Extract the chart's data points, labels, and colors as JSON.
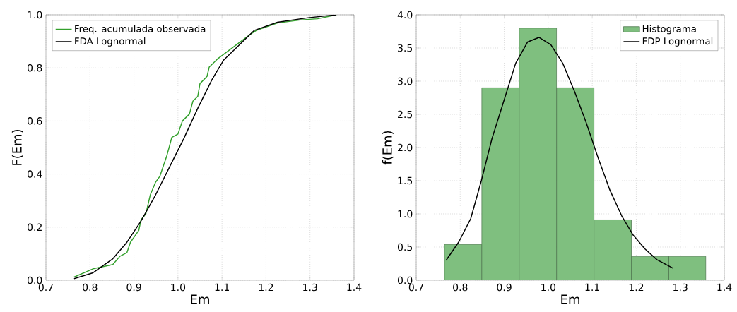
{
  "chart_data": [
    {
      "type": "line",
      "xlabel": "Em",
      "ylabel": "F(Em)",
      "xlim": [
        0.7,
        1.4
      ],
      "ylim": [
        0,
        1.0
      ],
      "xticks": [
        {
          "value": 0.7,
          "label": "0.7"
        },
        {
          "value": 0.8,
          "label": "0.8"
        },
        {
          "value": 0.9,
          "label": "0.9"
        },
        {
          "value": 1.0,
          "label": "1.0"
        },
        {
          "value": 1.1,
          "label": "1.1"
        },
        {
          "value": 1.2,
          "label": "1.2"
        },
        {
          "value": 1.3,
          "label": "1.3"
        },
        {
          "value": 1.4,
          "label": "1.4"
        }
      ],
      "yticks": [
        {
          "value": 0.0,
          "label": "0.0"
        },
        {
          "value": 0.2,
          "label": "0.2"
        },
        {
          "value": 0.4,
          "label": "0.4"
        },
        {
          "value": 0.6,
          "label": "0.6"
        },
        {
          "value": 0.8,
          "label": "0.8"
        },
        {
          "value": 1.0,
          "label": "1.0"
        }
      ],
      "grid": true,
      "legend": "top left",
      "series": [
        {
          "name": "Freq. acumulada observada",
          "color": "#33a02c",
          "x": [
            0.764,
            0.807,
            0.826,
            0.852,
            0.868,
            0.884,
            0.892,
            0.911,
            0.916,
            0.927,
            0.937,
            0.949,
            0.959,
            0.966,
            0.975,
            0.986,
            1.0,
            1.01,
            1.026,
            1.034,
            1.045,
            1.05,
            1.066,
            1.071,
            1.09,
            1.165,
            1.178,
            1.226,
            1.28,
            1.317,
            1.36
          ],
          "values": [
            0.012,
            0.043,
            0.05,
            0.059,
            0.09,
            0.104,
            0.143,
            0.188,
            0.228,
            0.25,
            0.321,
            0.369,
            0.392,
            0.427,
            0.471,
            0.538,
            0.551,
            0.6,
            0.626,
            0.675,
            0.693,
            0.741,
            0.768,
            0.803,
            0.834,
            0.927,
            0.941,
            0.969,
            0.981,
            0.985,
            1.0
          ]
        },
        {
          "name": "FDA Lognormal",
          "color": "#000000",
          "x": [
            0.764,
            0.807,
            0.852,
            0.884,
            0.916,
            0.949,
            0.981,
            1.013,
            1.045,
            1.077,
            1.104,
            1.173,
            1.226,
            1.296,
            1.36
          ],
          "values": [
            0.006,
            0.028,
            0.081,
            0.143,
            0.223,
            0.321,
            0.427,
            0.533,
            0.648,
            0.755,
            0.83,
            0.941,
            0.972,
            0.989,
            1.0
          ]
        }
      ]
    },
    {
      "type": "histogram",
      "xlabel": "Em",
      "ylabel": "f(Em)",
      "xlim": [
        0.7,
        1.4
      ],
      "ylim": [
        0,
        4.0
      ],
      "xticks": [
        {
          "value": 0.7,
          "label": "0.7"
        },
        {
          "value": 0.8,
          "label": "0.8"
        },
        {
          "value": 0.9,
          "label": "0.9"
        },
        {
          "value": 1.0,
          "label": "1.0"
        },
        {
          "value": 1.1,
          "label": "1.1"
        },
        {
          "value": 1.2,
          "label": "1.2"
        },
        {
          "value": 1.3,
          "label": "1.3"
        },
        {
          "value": 1.4,
          "label": "1.4"
        }
      ],
      "yticks": [
        {
          "value": 0.0,
          "label": "0.0"
        },
        {
          "value": 0.5,
          "label": "0.5"
        },
        {
          "value": 1.0,
          "label": "1.0"
        },
        {
          "value": 1.5,
          "label": "1.5"
        },
        {
          "value": 2.0,
          "label": "2.0"
        },
        {
          "value": 2.5,
          "label": "2.5"
        },
        {
          "value": 3.0,
          "label": "3.0"
        },
        {
          "value": 3.5,
          "label": "3.5"
        },
        {
          "value": 4.0,
          "label": "4.0"
        }
      ],
      "grid": true,
      "legend": "top right",
      "series": [
        {
          "name": "Histograma",
          "type": "histogram",
          "color": "#7fbf7f",
          "bins": [
            0.764,
            0.849,
            0.934,
            1.019,
            1.104,
            1.189,
            1.274,
            1.358
          ],
          "values": [
            0.54,
            2.9,
            3.8,
            2.9,
            0.91,
            0.36,
            0.36
          ]
        },
        {
          "name": "FDP Lognormal",
          "type": "line",
          "color": "#000000",
          "x": [
            0.768,
            0.797,
            0.824,
            0.848,
            0.872,
            0.899,
            0.926,
            0.953,
            0.979,
            1.006,
            1.033,
            1.06,
            1.086,
            1.113,
            1.14,
            1.167,
            1.193,
            1.22,
            1.247,
            1.284
          ],
          "values": [
            0.3,
            0.58,
            0.93,
            1.5,
            2.13,
            2.7,
            3.27,
            3.59,
            3.66,
            3.55,
            3.27,
            2.84,
            2.38,
            1.85,
            1.36,
            0.97,
            0.68,
            0.47,
            0.31,
            0.18
          ]
        }
      ]
    }
  ]
}
